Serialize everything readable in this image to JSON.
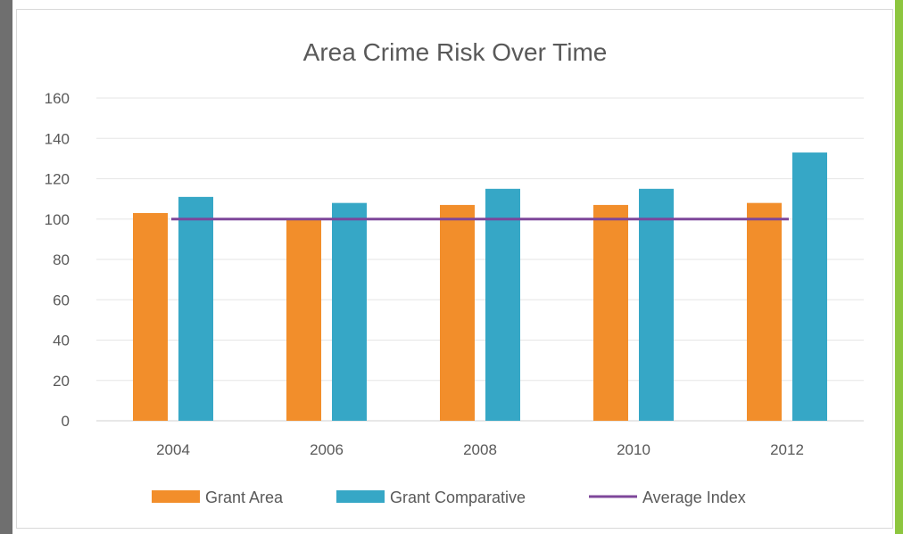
{
  "chart_data": {
    "type": "bar",
    "title": "Area Crime Risk Over Time",
    "categories": [
      "2004",
      "2006",
      "2008",
      "2010",
      "2012"
    ],
    "series": [
      {
        "name": "Grant Area",
        "kind": "bar",
        "color": "#f28e2b",
        "values": [
          103,
          100,
          107,
          107,
          108
        ]
      },
      {
        "name": "Grant Comparative",
        "kind": "bar",
        "color": "#36a7c6",
        "values": [
          111,
          108,
          115,
          115,
          133
        ]
      },
      {
        "name": "Average Index",
        "kind": "line",
        "color": "#7e479a",
        "values": [
          100,
          100,
          100,
          100,
          100
        ]
      }
    ],
    "ylim": [
      0,
      160
    ],
    "yticks": [
      0,
      20,
      40,
      60,
      80,
      100,
      120,
      140,
      160
    ],
    "grid": true,
    "legend_position": "bottom"
  }
}
